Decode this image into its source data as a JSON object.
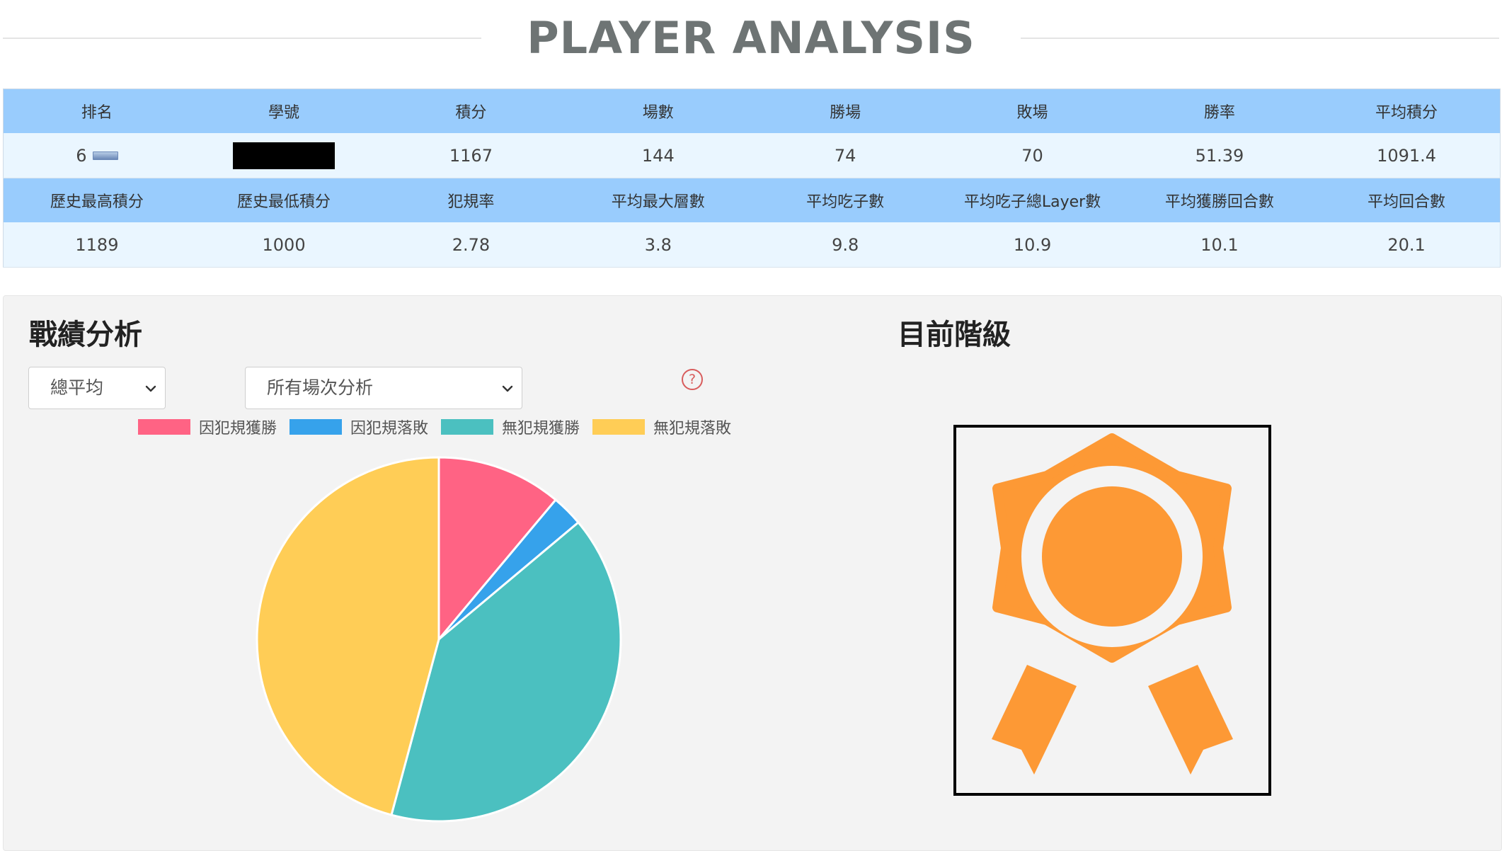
{
  "page_title": "PLAYER ANALYSIS",
  "stats_header_1": [
    "排名",
    "學號",
    "積分",
    "場數",
    "勝場",
    "敗場",
    "勝率",
    "平均積分"
  ],
  "stats_row_1": {
    "rank": "6",
    "points": "1167",
    "games": "144",
    "wins": "74",
    "losses": "70",
    "win_rate": "51.39",
    "avg_points": "1091.4"
  },
  "stats_header_2": [
    "歷史最高積分",
    "歷史最低積分",
    "犯規率",
    "平均最大層數",
    "平均吃子數",
    "平均吃子總Layer數",
    "平均獲勝回合數",
    "平均回合數"
  ],
  "stats_row_2": [
    "1189",
    "1000",
    "2.78",
    "3.8",
    "9.8",
    "10.9",
    "10.1",
    "20.1"
  ],
  "analysis": {
    "title": "戰績分析",
    "select_mode": "總平均",
    "select_scope": "所有場次分析",
    "help_icon": "question-circle-icon",
    "help_glyph": "?"
  },
  "rank_section": {
    "title": "目前階級",
    "badge_icon": "award-ribbon-icon",
    "badge_color": "#fd9935"
  },
  "chart_data": {
    "type": "pie",
    "legend_position": "top",
    "labels": [
      "因犯規獲勝",
      "因犯規落敗",
      "無犯規獲勝",
      "無犯規落敗"
    ],
    "values": [
      11.1,
      2.8,
      40.3,
      45.8
    ],
    "colors": [
      "#ff6384",
      "#36a2eb",
      "#4bc0c0",
      "#ffcd56"
    ]
  }
}
